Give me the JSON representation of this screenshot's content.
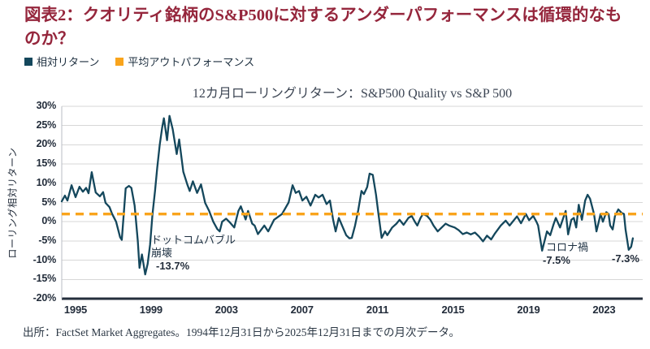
{
  "figure": {
    "title": "図表2：クオリティ銘柄のS&P500に対するアンダーパフォーマンスは循環的なものか？",
    "source": "出所：FactSet Market Aggregates。1994年12月31日から2025年12月31日までの月次データ。"
  },
  "legend": {
    "items": [
      {
        "label": "相対リターン",
        "color": "#14475c"
      },
      {
        "label": "平均アウトパフォーマンス",
        "color": "#f9a41c"
      }
    ]
  },
  "chart_data": {
    "type": "line",
    "subtitle": "12カ月ローリングリターン：S&P500 Quality vs S&P 500",
    "ylabel": "ローリング相対リターン",
    "ylim": [
      -20,
      30
    ],
    "xlim": [
      1994.27,
      2025.05
    ],
    "grid": true,
    "legend_position": "top-left",
    "yticks": [
      {
        "value": 30,
        "label": "30%"
      },
      {
        "value": 25,
        "label": "25%"
      },
      {
        "value": 20,
        "label": "20%"
      },
      {
        "value": 15,
        "label": "15%"
      },
      {
        "value": 10,
        "label": "10%"
      },
      {
        "value": 5,
        "label": "5%"
      },
      {
        "value": 0,
        "label": "0%"
      },
      {
        "value": -5,
        "label": "-5%"
      },
      {
        "value": -10,
        "label": "-10%"
      },
      {
        "value": -15,
        "label": "-15%"
      },
      {
        "value": -20,
        "label": "-20%"
      }
    ],
    "xticks": [
      {
        "value": 1995,
        "label": "1995"
      },
      {
        "value": 1999,
        "label": "1999"
      },
      {
        "value": 2003,
        "label": "2003"
      },
      {
        "value": 2007,
        "label": "2007"
      },
      {
        "value": 2011,
        "label": "2011"
      },
      {
        "value": 2015,
        "label": "2015"
      },
      {
        "value": 2019,
        "label": "2019"
      },
      {
        "value": 2023,
        "label": "2023"
      }
    ],
    "series": [
      {
        "name": "相対リターン",
        "color": "#14475c",
        "style": "solid",
        "points": [
          [
            1994.27,
            5.3
          ],
          [
            1994.44,
            6.8
          ],
          [
            1994.57,
            5.5
          ],
          [
            1994.79,
            9.5
          ],
          [
            1995.0,
            6.4
          ],
          [
            1995.21,
            9.1
          ],
          [
            1995.39,
            7.8
          ],
          [
            1995.56,
            8.8
          ],
          [
            1995.69,
            7.4
          ],
          [
            1995.86,
            12.9
          ],
          [
            1996.07,
            7.6
          ],
          [
            1996.29,
            6.6
          ],
          [
            1996.46,
            7.7
          ],
          [
            1996.59,
            4.9
          ],
          [
            1996.8,
            3.8
          ],
          [
            1996.93,
            2.1
          ],
          [
            1997.15,
            0.0
          ],
          [
            1997.36,
            -4.0
          ],
          [
            1997.45,
            -4.7
          ],
          [
            1997.66,
            8.7
          ],
          [
            1997.83,
            9.3
          ],
          [
            1997.96,
            8.8
          ],
          [
            1998.13,
            4.2
          ],
          [
            1998.3,
            -5.0
          ],
          [
            1998.39,
            -12.0
          ],
          [
            1998.52,
            -8.5
          ],
          [
            1998.69,
            -13.7
          ],
          [
            1998.82,
            -11.0
          ],
          [
            1998.95,
            -6.0
          ],
          [
            1999.08,
            2.0
          ],
          [
            1999.21,
            8.0
          ],
          [
            1999.33,
            14.0
          ],
          [
            1999.46,
            20.0
          ],
          [
            1999.59,
            24.5
          ],
          [
            1999.68,
            26.9
          ],
          [
            1999.85,
            21.2
          ],
          [
            1999.98,
            27.5
          ],
          [
            2000.15,
            24.0
          ],
          [
            2000.36,
            17.6
          ],
          [
            2000.49,
            21.4
          ],
          [
            2000.71,
            13.0
          ],
          [
            2000.92,
            9.7
          ],
          [
            2001.05,
            8.0
          ],
          [
            2001.22,
            10.5
          ],
          [
            2001.44,
            7.5
          ],
          [
            2001.65,
            9.7
          ],
          [
            2001.87,
            4.9
          ],
          [
            2002.08,
            2.8
          ],
          [
            2002.3,
            0.0
          ],
          [
            2002.51,
            -1.9
          ],
          [
            2002.64,
            -2.5
          ],
          [
            2002.77,
            0.0
          ],
          [
            2002.98,
            0.8
          ],
          [
            2003.2,
            -0.3
          ],
          [
            2003.41,
            -1.5
          ],
          [
            2003.63,
            2.8
          ],
          [
            2003.76,
            4.0
          ],
          [
            2004.01,
            0.6
          ],
          [
            2004.14,
            2.8
          ],
          [
            2004.36,
            -0.5
          ],
          [
            2004.49,
            -1.0
          ],
          [
            2004.66,
            -3.2
          ],
          [
            2005.0,
            -1.0
          ],
          [
            2005.21,
            -2.5
          ],
          [
            2005.52,
            0.5
          ],
          [
            2005.94,
            2.0
          ],
          [
            2006.29,
            5.0
          ],
          [
            2006.5,
            9.5
          ],
          [
            2006.67,
            7.5
          ],
          [
            2006.84,
            8.0
          ],
          [
            2007.02,
            5.5
          ],
          [
            2007.23,
            6.5
          ],
          [
            2007.45,
            4.2
          ],
          [
            2007.7,
            7.0
          ],
          [
            2007.88,
            6.3
          ],
          [
            2008.09,
            7.0
          ],
          [
            2008.3,
            4.6
          ],
          [
            2008.48,
            5.5
          ],
          [
            2008.65,
            0.5
          ],
          [
            2008.78,
            -2.5
          ],
          [
            2008.95,
            1.0
          ],
          [
            2009.12,
            -1.0
          ],
          [
            2009.34,
            -3.5
          ],
          [
            2009.51,
            -4.3
          ],
          [
            2009.64,
            -4.2
          ],
          [
            2009.81,
            -1.0
          ],
          [
            2009.98,
            3.0
          ],
          [
            2010.15,
            8.0
          ],
          [
            2010.28,
            7.2
          ],
          [
            2010.45,
            9.0
          ],
          [
            2010.58,
            12.5
          ],
          [
            2010.75,
            12.2
          ],
          [
            2010.92,
            7.0
          ],
          [
            2011.05,
            2.0
          ],
          [
            2011.22,
            -4.2
          ],
          [
            2011.4,
            -2.5
          ],
          [
            2011.52,
            -3.5
          ],
          [
            2011.78,
            -1.5
          ],
          [
            2012.0,
            -0.5
          ],
          [
            2012.17,
            0.5
          ],
          [
            2012.38,
            -0.8
          ],
          [
            2012.64,
            1.0
          ],
          [
            2012.81,
            1.5
          ],
          [
            2012.98,
            0.0
          ],
          [
            2013.11,
            -1.0
          ],
          [
            2013.28,
            1.0
          ],
          [
            2013.41,
            2.0
          ],
          [
            2013.63,
            1.5
          ],
          [
            2013.8,
            0.5
          ],
          [
            2013.97,
            -1.0
          ],
          [
            2014.19,
            -2.5
          ],
          [
            2014.4,
            -1.5
          ],
          [
            2014.61,
            -0.5
          ],
          [
            2014.79,
            -1.0
          ],
          [
            2015.09,
            -1.5
          ],
          [
            2015.3,
            -2.2
          ],
          [
            2015.52,
            -3.2
          ],
          [
            2015.73,
            -2.8
          ],
          [
            2015.94,
            -3.3
          ],
          [
            2016.16,
            -2.8
          ],
          [
            2016.37,
            -3.8
          ],
          [
            2016.59,
            -5.1
          ],
          [
            2016.8,
            -3.6
          ],
          [
            2017.02,
            -4.6
          ],
          [
            2017.23,
            -3.0
          ],
          [
            2017.53,
            -1.0
          ],
          [
            2017.79,
            0.3
          ],
          [
            2018.0,
            -1.0
          ],
          [
            2018.39,
            1.4
          ],
          [
            2018.6,
            -0.4
          ],
          [
            2018.86,
            2.0
          ],
          [
            2019.03,
            0.4
          ],
          [
            2019.25,
            1.5
          ],
          [
            2019.42,
            0.0
          ],
          [
            2019.51,
            -1.0
          ],
          [
            2019.72,
            -7.5
          ],
          [
            2019.98,
            -2.5
          ],
          [
            2020.15,
            -3.5
          ],
          [
            2020.32,
            -0.8
          ],
          [
            2020.45,
            1.0
          ],
          [
            2020.67,
            -1.5
          ],
          [
            2020.97,
            2.8
          ],
          [
            2021.1,
            -3.3
          ],
          [
            2021.27,
            0.5
          ],
          [
            2021.4,
            1.0
          ],
          [
            2021.53,
            -1.5
          ],
          [
            2021.66,
            4.4
          ],
          [
            2021.83,
            0.5
          ],
          [
            2022.0,
            5.5
          ],
          [
            2022.13,
            7.0
          ],
          [
            2022.26,
            6.0
          ],
          [
            2022.47,
            2.0
          ],
          [
            2022.6,
            -2.5
          ],
          [
            2022.82,
            2.0
          ],
          [
            2022.94,
            0.0
          ],
          [
            2023.12,
            2.5
          ],
          [
            2023.24,
            2.0
          ],
          [
            2023.33,
            -1.0
          ],
          [
            2023.46,
            -2.0
          ],
          [
            2023.58,
            1.5
          ],
          [
            2023.76,
            3.2
          ],
          [
            2023.93,
            2.3
          ],
          [
            2024.06,
            2.0
          ],
          [
            2024.14,
            -2.0
          ],
          [
            2024.31,
            -7.3
          ],
          [
            2024.44,
            -6.5
          ],
          [
            2024.53,
            -4.3
          ]
        ]
      },
      {
        "name": "平均アウトパフォーマンス",
        "color": "#f9a41c",
        "style": "dashed",
        "value": 2.0
      }
    ],
    "annotations": [
      {
        "line1": "ドットコムバブル",
        "line2": "崩壊",
        "value": "-13.7%"
      },
      {
        "line1": "コロナ禍",
        "value": "-7.5%"
      },
      {
        "value": "-7.3%"
      }
    ]
  }
}
